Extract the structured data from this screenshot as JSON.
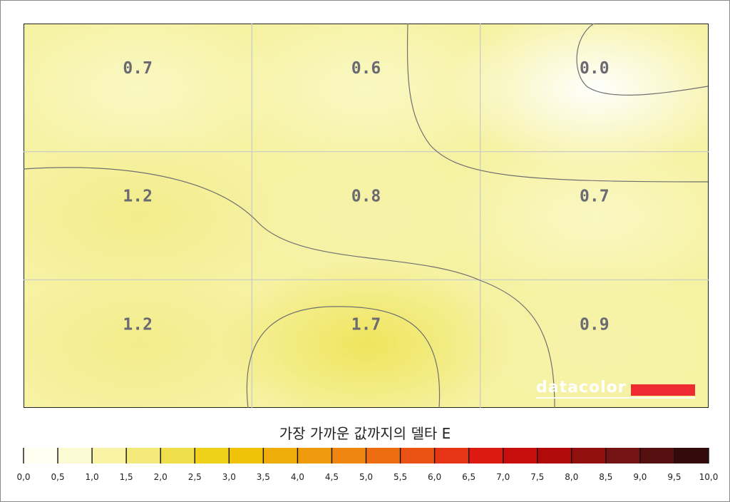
{
  "chart_data": {
    "type": "heatmap",
    "title": "가장 가까운 값까지의 델타 E",
    "rows": 3,
    "cols": 3,
    "values": [
      [
        0.7,
        0.6,
        0.0
      ],
      [
        1.2,
        0.8,
        0.7
      ],
      [
        1.2,
        1.7,
        0.9
      ]
    ],
    "value_labels": [
      [
        "0.7",
        "0.6",
        "0.0"
      ],
      [
        "1.2",
        "0.8",
        "0.7"
      ],
      [
        "1.2",
        "1.7",
        "0.9"
      ]
    ],
    "grid": true,
    "contours": true,
    "colorbar": {
      "min": 0.0,
      "max": 10.0,
      "step": 0.5,
      "tick_labels": [
        "0,0",
        "0,5",
        "1,0",
        "1,5",
        "2,0",
        "2,5",
        "3,0",
        "3,5",
        "4,0",
        "4,5",
        "5,0",
        "5,5",
        "6,0",
        "6,5",
        "7,0",
        "7,5",
        "8,0",
        "8,5",
        "9,0",
        "9,5",
        "10,0"
      ],
      "colors": [
        "#fffff2",
        "#fcfad2",
        "#f9f3a6",
        "#f4ea7c",
        "#f0df4c",
        "#efd11a",
        "#f0c20a",
        "#efad0c",
        "#ef9b0e",
        "#ee860f",
        "#ec6e11",
        "#ea5313",
        "#e63416",
        "#dc1a12",
        "#c80d0d",
        "#b00a0a",
        "#931010",
        "#741313",
        "#561010",
        "#350a0a"
      ]
    }
  },
  "watermark": {
    "text": "datacolor",
    "bar_color": "#ef2b32"
  }
}
